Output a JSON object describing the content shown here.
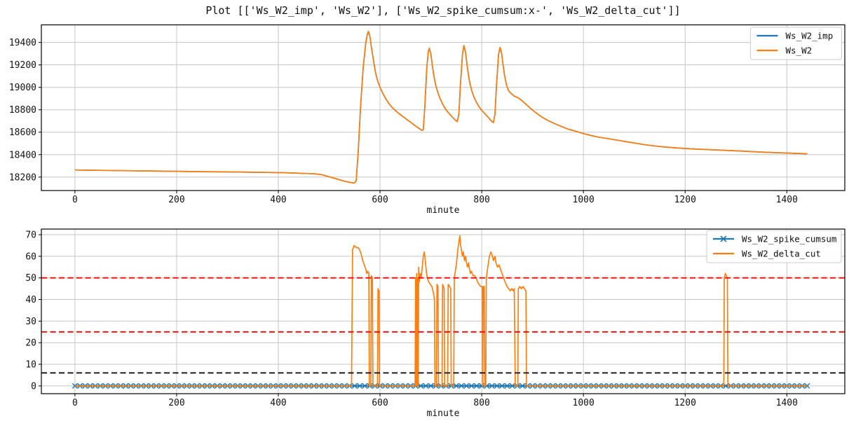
{
  "figure": {
    "title": "Plot [['Ws_W2_imp', 'Ws_W2'], ['Ws_W2_spike_cumsum:x-', 'Ws_W2_delta_cut']]",
    "background": "#ffffff"
  },
  "colors": {
    "series_blue": "#1f77b4",
    "series_orange": "#ff7f0e",
    "threshold_red": "#ff0000",
    "threshold_black": "#000000",
    "grid": "#c6c6c6",
    "spine": "#000000"
  },
  "chart_data": [
    {
      "type": "line",
      "title": "",
      "xlabel": "minute",
      "ylabel": "",
      "xlim": [
        -66,
        1514
      ],
      "ylim": [
        18080,
        19557
      ],
      "xticks": [
        0,
        200,
        400,
        600,
        800,
        1000,
        1200,
        1400
      ],
      "yticks": [
        18200,
        18400,
        18600,
        18800,
        19000,
        19200,
        19400
      ],
      "grid": true,
      "legend_position": "upper right",
      "legend": [
        "Ws_W2_imp",
        "Ws_W2"
      ],
      "series": [
        {
          "name": "Ws_W2_imp",
          "color": "#1f77b4",
          "marker": null,
          "note": "identical to Ws_W2 and completely hidden beneath it",
          "points_ref": "Ws_W2"
        },
        {
          "name": "Ws_W2",
          "color": "#ff7f0e",
          "marker": null,
          "points": [
            [
              0,
              18263
            ],
            [
              50,
              18260
            ],
            [
              100,
              18257
            ],
            [
              150,
              18254
            ],
            [
              200,
              18251
            ],
            [
              250,
              18248
            ],
            [
              300,
              18246
            ],
            [
              350,
              18243
            ],
            [
              400,
              18240
            ],
            [
              430,
              18236
            ],
            [
              455,
              18232
            ],
            [
              470,
              18230
            ],
            [
              485,
              18222
            ],
            [
              500,
              18203
            ],
            [
              515,
              18183
            ],
            [
              530,
              18163
            ],
            [
              542,
              18152
            ],
            [
              549,
              18147
            ],
            [
              553,
              18165
            ],
            [
              557,
              18420
            ],
            [
              562,
              18850
            ],
            [
              567,
              19180
            ],
            [
              572,
              19400
            ],
            [
              575,
              19470
            ],
            [
              577,
              19498
            ],
            [
              580,
              19455
            ],
            [
              583,
              19360
            ],
            [
              587,
              19245
            ],
            [
              591,
              19135
            ],
            [
              595,
              19062
            ],
            [
              600,
              19000
            ],
            [
              606,
              18942
            ],
            [
              612,
              18893
            ],
            [
              618,
              18852
            ],
            [
              624,
              18820
            ],
            [
              630,
              18794
            ],
            [
              636,
              18771
            ],
            [
              642,
              18750
            ],
            [
              648,
              18729
            ],
            [
              654,
              18709
            ],
            [
              660,
              18690
            ],
            [
              666,
              18669
            ],
            [
              671,
              18652
            ],
            [
              676,
              18636
            ],
            [
              680,
              18624
            ],
            [
              682,
              18616
            ],
            [
              685,
              18620
            ],
            [
              688,
              18820
            ],
            [
              692,
              19180
            ],
            [
              695,
              19320
            ],
            [
              697,
              19348
            ],
            [
              700,
              19298
            ],
            [
              703,
              19190
            ],
            [
              706,
              19100
            ],
            [
              710,
              19012
            ],
            [
              714,
              18952
            ],
            [
              718,
              18902
            ],
            [
              723,
              18852
            ],
            [
              728,
              18812
            ],
            [
              733,
              18782
            ],
            [
              738,
              18756
            ],
            [
              743,
              18731
            ],
            [
              747,
              18712
            ],
            [
              750,
              18700
            ],
            [
              752,
              18696
            ],
            [
              755,
              18760
            ],
            [
              758,
              19020
            ],
            [
              762,
              19290
            ],
            [
              765,
              19373
            ],
            [
              768,
              19318
            ],
            [
              771,
              19205
            ],
            [
              774,
              19105
            ],
            [
              777,
              19032
            ],
            [
              781,
              18962
            ],
            [
              785,
              18912
            ],
            [
              789,
              18872
            ],
            [
              794,
              18832
            ],
            [
              799,
              18800
            ],
            [
              804,
              18776
            ],
            [
              809,
              18751
            ],
            [
              814,
              18726
            ],
            [
              818,
              18706
            ],
            [
              821,
              18691
            ],
            [
              823,
              18686
            ],
            [
              826,
              18760
            ],
            [
              829,
              19020
            ],
            [
              833,
              19290
            ],
            [
              836,
              19356
            ],
            [
              839,
              19308
            ],
            [
              842,
              19200
            ],
            [
              845,
              19102
            ],
            [
              849,
              19015
            ],
            [
              853,
              18968
            ],
            [
              858,
              18945
            ],
            [
              864,
              18922
            ],
            [
              869,
              18911
            ],
            [
              873,
              18904
            ],
            [
              880,
              18878
            ],
            [
              888,
              18845
            ],
            [
              896,
              18812
            ],
            [
              904,
              18782
            ],
            [
              912,
              18755
            ],
            [
              920,
              18730
            ],
            [
              930,
              18705
            ],
            [
              940,
              18683
            ],
            [
              950,
              18663
            ],
            [
              960,
              18645
            ],
            [
              970,
              18628
            ],
            [
              983,
              18611
            ],
            [
              1000,
              18588
            ],
            [
              1015,
              18570
            ],
            [
              1030,
              18556
            ],
            [
              1052,
              18540
            ],
            [
              1070,
              18526
            ],
            [
              1090,
              18511
            ],
            [
              1105,
              18500
            ],
            [
              1121,
              18488
            ],
            [
              1140,
              18478
            ],
            [
              1160,
              18468
            ],
            [
              1180,
              18461
            ],
            [
              1200,
              18455
            ],
            [
              1230,
              18448
            ],
            [
              1259,
              18442
            ],
            [
              1290,
              18436
            ],
            [
              1320,
              18430
            ],
            [
              1350,
              18423
            ],
            [
              1380,
              18417
            ],
            [
              1400,
              18414
            ],
            [
              1420,
              18411
            ],
            [
              1440,
              18408
            ]
          ]
        }
      ]
    },
    {
      "type": "line",
      "title": "",
      "xlabel": "minute",
      "ylabel": "",
      "xlim": [
        -66,
        1514
      ],
      "ylim": [
        -3.6,
        72.6
      ],
      "xticks": [
        0,
        200,
        400,
        600,
        800,
        1000,
        1200,
        1400
      ],
      "yticks": [
        0,
        10,
        20,
        30,
        40,
        50,
        60,
        70
      ],
      "grid": true,
      "legend_position": "upper right",
      "legend": [
        "Ws_W2_spike_cumsum",
        "Ws_W2_delta_cut"
      ],
      "thresholds": [
        {
          "y": 50,
          "color": "#ff0000",
          "style": "dashed"
        },
        {
          "y": 25,
          "color": "#ff0000",
          "style": "dashed"
        },
        {
          "y": 6,
          "color": "#000000",
          "style": "dashed"
        }
      ],
      "series": [
        {
          "name": "Ws_W2_spike_cumsum",
          "color": "#1f77b4",
          "marker": "x",
          "note": "constant 0 across full range, dense x markers form a thick band",
          "points": [
            [
              0,
              0
            ],
            [
              1440,
              0
            ]
          ]
        },
        {
          "name": "Ws_W2_delta_cut",
          "color": "#ff7f0e",
          "marker": null,
          "points": [
            [
              0,
              0
            ],
            [
              544,
              0
            ],
            [
              546,
              63
            ],
            [
              549,
              65
            ],
            [
              553,
              64
            ],
            [
              557,
              64
            ],
            [
              560,
              63
            ],
            [
              563,
              61
            ],
            [
              566,
              58
            ],
            [
              569,
              56
            ],
            [
              572,
              54
            ],
            [
              574,
              52
            ],
            [
              576,
              53
            ],
            [
              578,
              52
            ],
            [
              579,
              0
            ],
            [
              582,
              0
            ],
            [
              583,
              51
            ],
            [
              585,
              50
            ],
            [
              586,
              0
            ],
            [
              595,
              0
            ],
            [
              596,
              45
            ],
            [
              598,
              44
            ],
            [
              599,
              0
            ],
            [
              669,
              0
            ],
            [
              670,
              50
            ],
            [
              671,
              0
            ],
            [
              672,
              52
            ],
            [
              673,
              0
            ],
            [
              674,
              50
            ],
            [
              675,
              0
            ],
            [
              676,
              55
            ],
            [
              677,
              48
            ],
            [
              679,
              52
            ],
            [
              681,
              50
            ],
            [
              683,
              55
            ],
            [
              685,
              60
            ],
            [
              687,
              62
            ],
            [
              689,
              58
            ],
            [
              691,
              53
            ],
            [
              693,
              50
            ],
            [
              696,
              48
            ],
            [
              699,
              47
            ],
            [
              702,
              46
            ],
            [
              705,
              43
            ],
            [
              707,
              40
            ],
            [
              708,
              0
            ],
            [
              711,
              0
            ],
            [
              712,
              47
            ],
            [
              714,
              46
            ],
            [
              715,
              0
            ],
            [
              722,
              0
            ],
            [
              723,
              47
            ],
            [
              726,
              45
            ],
            [
              727,
              0
            ],
            [
              733,
              0
            ],
            [
              734,
              47
            ],
            [
              737,
              46
            ],
            [
              739,
              45
            ],
            [
              740,
              0
            ],
            [
              745,
              0
            ],
            [
              746,
              50
            ],
            [
              748,
              53
            ],
            [
              750,
              56
            ],
            [
              752,
              61
            ],
            [
              754,
              65
            ],
            [
              756,
              68
            ],
            [
              757,
              69.5
            ],
            [
              758,
              66
            ],
            [
              760,
              63
            ],
            [
              762,
              60
            ],
            [
              764,
              62
            ],
            [
              766,
              58
            ],
            [
              768,
              60
            ],
            [
              770,
              57
            ],
            [
              772,
              55
            ],
            [
              774,
              57
            ],
            [
              776,
              54
            ],
            [
              778,
              52
            ],
            [
              780,
              53
            ],
            [
              783,
              51
            ],
            [
              786,
              51
            ],
            [
              789,
              50
            ],
            [
              792,
              48
            ],
            [
              795,
              47
            ],
            [
              798,
              46
            ],
            [
              801,
              46
            ],
            [
              802,
              0
            ],
            [
              803,
              46
            ],
            [
              805,
              46
            ],
            [
              806,
              0
            ],
            [
              808,
              0
            ],
            [
              809,
              50
            ],
            [
              812,
              55
            ],
            [
              815,
              60
            ],
            [
              818,
              62
            ],
            [
              820,
              61
            ],
            [
              823,
              58
            ],
            [
              826,
              60
            ],
            [
              828,
              57
            ],
            [
              831,
              55
            ],
            [
              834,
              56
            ],
            [
              837,
              54
            ],
            [
              840,
              52
            ],
            [
              843,
              50
            ],
            [
              846,
              48
            ],
            [
              850,
              46
            ],
            [
              853,
              45
            ],
            [
              856,
              44
            ],
            [
              859,
              45
            ],
            [
              862,
              44
            ],
            [
              864,
              45
            ],
            [
              866,
              0
            ],
            [
              871,
              0
            ],
            [
              872,
              45
            ],
            [
              875,
              46
            ],
            [
              878,
              45
            ],
            [
              881,
              46
            ],
            [
              884,
              45
            ],
            [
              887,
              44
            ],
            [
              888,
              0
            ],
            [
              1276,
              0
            ],
            [
              1277,
              50
            ],
            [
              1279,
              52
            ],
            [
              1281,
              51
            ],
            [
              1283,
              50
            ],
            [
              1284,
              0
            ],
            [
              1440,
              0
            ]
          ]
        }
      ]
    }
  ]
}
